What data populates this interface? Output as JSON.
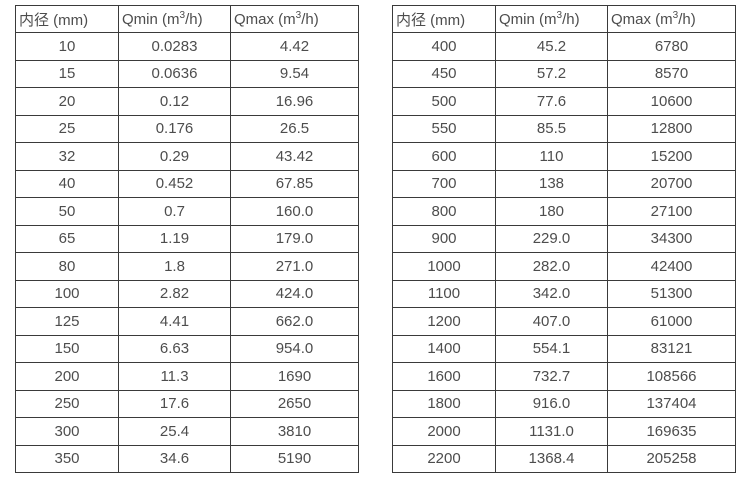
{
  "page": {
    "background": "#ffffff",
    "border_color": "#3a3a3a",
    "text_color": "#4d4d4d"
  },
  "tables": [
    {
      "id": "flow-table-small-diameter",
      "headers": [
        "内径 (mm)",
        "Qmin (m³/h)",
        "Qmax (m³/h)"
      ],
      "rows": [
        [
          "10",
          "0.0283",
          "4.42"
        ],
        [
          "15",
          "0.0636",
          "9.54"
        ],
        [
          "20",
          "0.12",
          "16.96"
        ],
        [
          "25",
          "0.176",
          "26.5"
        ],
        [
          "32",
          "0.29",
          "43.42"
        ],
        [
          "40",
          "0.452",
          "67.85"
        ],
        [
          "50",
          "0.7",
          "160.0"
        ],
        [
          "65",
          "1.19",
          "179.0"
        ],
        [
          "80",
          "1.8",
          "271.0"
        ],
        [
          "100",
          "2.82",
          "424.0"
        ],
        [
          "125",
          "4.41",
          "662.0"
        ],
        [
          "150",
          "6.63",
          "954.0"
        ],
        [
          "200",
          "11.3",
          "1690"
        ],
        [
          "250",
          "17.6",
          "2650"
        ],
        [
          "300",
          "25.4",
          "3810"
        ],
        [
          "350",
          "34.6",
          "5190"
        ]
      ]
    },
    {
      "id": "flow-table-large-diameter",
      "headers": [
        "内径 (mm)",
        "Qmin (m³/h)",
        "Qmax (m³/h)"
      ],
      "rows": [
        [
          "400",
          "45.2",
          "6780"
        ],
        [
          "450",
          "57.2",
          "8570"
        ],
        [
          "500",
          "77.6",
          "10600"
        ],
        [
          "550",
          "85.5",
          "12800"
        ],
        [
          "600",
          "110",
          "15200"
        ],
        [
          "700",
          "138",
          "20700"
        ],
        [
          "800",
          "180",
          "27100"
        ],
        [
          "900",
          "229.0",
          "34300"
        ],
        [
          "1000",
          "282.0",
          "42400"
        ],
        [
          "1100",
          "342.0",
          "51300"
        ],
        [
          "1200",
          "407.0",
          "61000"
        ],
        [
          "1400",
          "554.1",
          "83121"
        ],
        [
          "1600",
          "732.7",
          "108566"
        ],
        [
          "1800",
          "916.0",
          "137404"
        ],
        [
          "2000",
          "1131.0",
          "169635"
        ],
        [
          "2200",
          "1368.4",
          "205258"
        ]
      ]
    }
  ]
}
